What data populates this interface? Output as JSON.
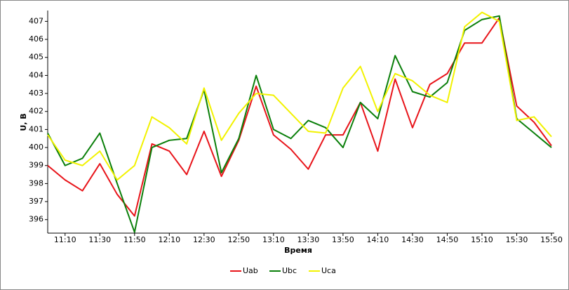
{
  "chart_data": {
    "type": "line",
    "y_label": "U, В",
    "x_label": "Время",
    "categories": [
      null,
      "11:10",
      null,
      "11:30",
      null,
      "11:50",
      null,
      "12:10",
      null,
      "12:30",
      null,
      "12:50",
      null,
      "13:10",
      null,
      "13:30",
      null,
      "13:50",
      null,
      "14:10",
      null,
      "14:30",
      null,
      "14:50",
      null,
      "15:10",
      null,
      "15:30",
      null,
      "15:50"
    ],
    "series": [
      {
        "name": "Uab",
        "color": "#e8141a",
        "values": [
          399.0,
          398.2,
          397.6,
          399.1,
          397.4,
          396.2,
          400.2,
          399.8,
          398.5,
          400.9,
          398.4,
          400.4,
          403.4,
          400.7,
          399.9,
          398.8,
          400.7,
          400.7,
          402.5,
          399.8,
          403.8,
          401.1,
          403.5,
          404.1,
          405.8,
          405.8,
          407.2,
          402.3,
          401.4,
          400.1
        ]
      },
      {
        "name": "Ubc",
        "color": "#0a7f0a",
        "values": [
          400.8,
          399.0,
          399.4,
          400.8,
          398.0,
          395.3,
          400.0,
          400.4,
          400.5,
          403.2,
          398.6,
          400.5,
          404.0,
          401.0,
          400.5,
          401.5,
          401.1,
          400.0,
          402.5,
          401.6,
          405.1,
          403.1,
          402.8,
          403.6,
          406.5,
          407.1,
          407.3,
          401.6,
          400.8,
          400.0
        ]
      },
      {
        "name": "Uca",
        "color": "#f2f200",
        "values": [
          400.7,
          399.3,
          399.0,
          399.8,
          398.2,
          399.0,
          401.7,
          401.1,
          400.2,
          403.3,
          400.4,
          401.9,
          403.0,
          402.9,
          401.9,
          400.9,
          400.8,
          403.3,
          404.5,
          402.0,
          404.1,
          403.7,
          402.9,
          402.5,
          406.7,
          407.5,
          407.0,
          401.5,
          401.7,
          400.6
        ]
      }
    ],
    "ylim": [
      395.25,
      407.6
    ],
    "yticks": [
      396,
      397,
      398,
      399,
      400,
      401,
      402,
      403,
      404,
      405,
      406,
      407
    ],
    "grid": false,
    "legend": "bottom"
  }
}
